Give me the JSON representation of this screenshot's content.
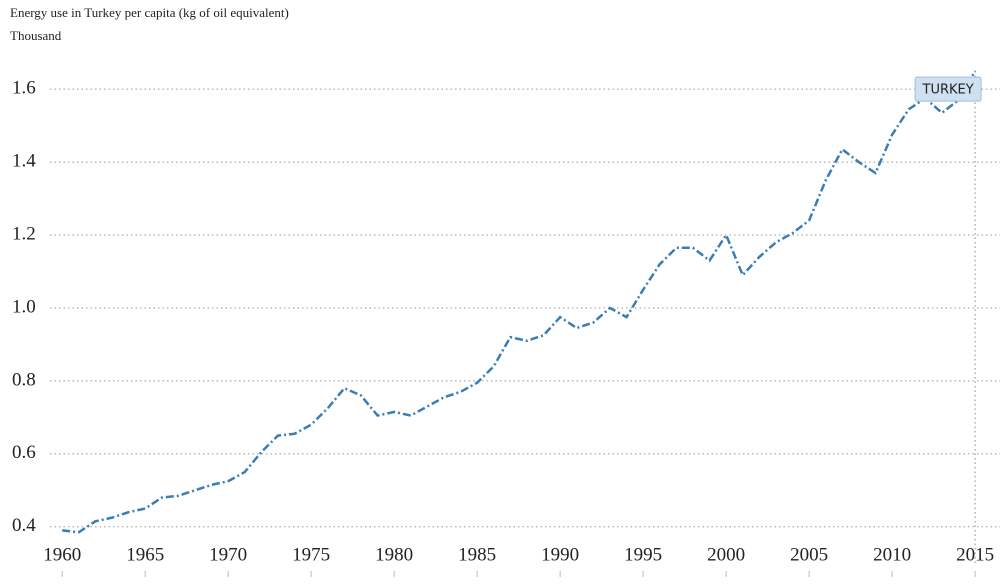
{
  "chart_data": {
    "type": "line",
    "title": "Energy use in Turkey per capita (kg of oil equivalent)",
    "subtitle": "Thousand",
    "x": [
      1960,
      1961,
      1962,
      1963,
      1964,
      1965,
      1966,
      1967,
      1968,
      1969,
      1970,
      1971,
      1972,
      1973,
      1974,
      1975,
      1976,
      1977,
      1978,
      1979,
      1980,
      1981,
      1982,
      1983,
      1984,
      1985,
      1986,
      1987,
      1988,
      1989,
      1990,
      1991,
      1992,
      1993,
      1994,
      1995,
      1996,
      1997,
      1998,
      1999,
      2000,
      2001,
      2002,
      2003,
      2004,
      2005,
      2006,
      2007,
      2008,
      2009,
      2010,
      2011,
      2012,
      2013,
      2014,
      2015
    ],
    "series": [
      {
        "name": "TURKEY",
        "color": "#3a7db5",
        "values": [
          0.39,
          0.385,
          0.415,
          0.425,
          0.44,
          0.45,
          0.48,
          0.485,
          0.5,
          0.515,
          0.525,
          0.55,
          0.605,
          0.65,
          0.655,
          0.68,
          0.725,
          0.78,
          0.76,
          0.705,
          0.715,
          0.705,
          0.73,
          0.755,
          0.77,
          0.795,
          0.84,
          0.92,
          0.91,
          0.925,
          0.975,
          0.945,
          0.96,
          1.0,
          0.975,
          1.05,
          1.12,
          1.165,
          1.165,
          1.13,
          1.2,
          1.09,
          1.14,
          1.18,
          1.205,
          1.24,
          1.35,
          1.435,
          1.4,
          1.37,
          1.475,
          1.545,
          1.575,
          1.535,
          1.57,
          1.65
        ]
      }
    ],
    "xlim": [
      1958,
      2016.5
    ],
    "xticks": [
      1960,
      1965,
      1970,
      1975,
      1980,
      1985,
      1990,
      1995,
      2000,
      2005,
      2010,
      2015
    ],
    "ylim": [
      0.35,
      1.68
    ],
    "yticks": [
      0.4,
      0.6,
      0.8,
      {
        "value": 1,
        "label": "1.0"
      },
      1.2,
      1.4,
      1.6
    ],
    "grid": true
  }
}
